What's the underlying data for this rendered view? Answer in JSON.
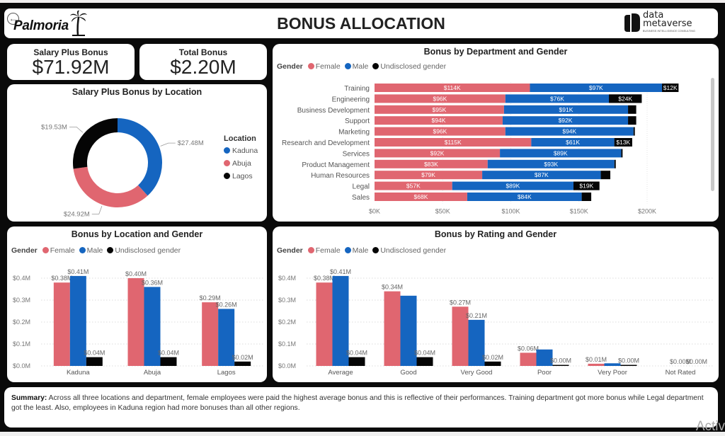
{
  "header": {
    "brand_left": "Palmoria",
    "title": "BONUS ALLOCATION",
    "brand_right_line1": "data",
    "brand_right_line2": "metaverse",
    "brand_right_tagline": "BUSINESS INTELLIGENCE CONSULTING",
    "back_icon": "back-arrow-icon"
  },
  "colors": {
    "female": "#e06670",
    "male": "#1565c0",
    "undisclosed": "#050505"
  },
  "kpis": [
    {
      "label": "Salary Plus Bonus",
      "value": "$71.92M"
    },
    {
      "label": "Total Bonus",
      "value": "$2.20M"
    }
  ],
  "legend": {
    "title": "Gender",
    "items": [
      "Female",
      "Male",
      "Undisclosed gender"
    ]
  },
  "summary": {
    "label": "Summary:",
    "text": " Across all three locations and department, female employees were paid the highest average bonus and this is reflective of their performances. Training department got more bonus while Legal department got the least. Also, employees in Kaduna region had more bonuses than all other regions."
  },
  "watermark": "Activ",
  "chart_data": [
    {
      "type": "pie",
      "title": "Salary Plus Bonus by Location",
      "legend_title": "Location",
      "legend_position": "right",
      "categories": [
        "Kaduna",
        "Abuja",
        "Lagos"
      ],
      "values": [
        27.48,
        24.92,
        19.53
      ],
      "labels": [
        "$27.48M",
        "$24.92M",
        "$19.53M"
      ],
      "colors": [
        "#1565c0",
        "#e06670",
        "#050505"
      ],
      "unit": "$M",
      "donut": true
    },
    {
      "type": "bar",
      "orientation": "horizontal",
      "stacked": true,
      "title": "Bonus by Department and Gender",
      "legend_position": "top-left",
      "categories": [
        "Training",
        "Engineering",
        "Business Development",
        "Support",
        "Marketing",
        "Research and Development",
        "Services",
        "Product Management",
        "Human Resources",
        "Legal",
        "Sales"
      ],
      "series": [
        {
          "name": "Female",
          "values": [
            114,
            96,
            95,
            94,
            96,
            115,
            92,
            83,
            79,
            57,
            68
          ],
          "labels": [
            "$114K",
            "$96K",
            "$95K",
            "$94K",
            "$96K",
            "$115K",
            "$92K",
            "$83K",
            "$79K",
            "$57K",
            "$68K"
          ]
        },
        {
          "name": "Male",
          "values": [
            97,
            76,
            91,
            92,
            94,
            61,
            89,
            93,
            87,
            89,
            84
          ],
          "labels": [
            "$97K",
            "$76K",
            "$91K",
            "$92K",
            "$94K",
            "$61K",
            "$89K",
            "$93K",
            "$87K",
            "$89K",
            "$84K"
          ]
        },
        {
          "name": "Undisclosed gender",
          "values": [
            12,
            24,
            6,
            6,
            1,
            13,
            1,
            1,
            7,
            19,
            7
          ],
          "labels": [
            "$12K",
            "$24K",
            "",
            "",
            "",
            "$13K",
            "",
            "",
            "",
            "$19K",
            ""
          ]
        }
      ],
      "xlim": [
        0,
        210
      ],
      "xticks": [
        "$0K",
        "$50K",
        "$100K",
        "$150K",
        "$200K"
      ],
      "xtick_values": [
        0,
        50,
        100,
        150,
        200
      ],
      "unit": "$K",
      "grid": true
    },
    {
      "type": "bar",
      "title": "Bonus by Location and Gender",
      "legend_position": "top-left",
      "categories": [
        "Kaduna",
        "Abuja",
        "Lagos"
      ],
      "series": [
        {
          "name": "Female",
          "values": [
            0.38,
            0.4,
            0.29
          ],
          "labels": [
            "$0.38M",
            "$0.40M",
            "$0.29M"
          ]
        },
        {
          "name": "Male",
          "values": [
            0.41,
            0.36,
            0.26
          ],
          "labels": [
            "$0.41M",
            "$0.36M",
            "$0.26M"
          ]
        },
        {
          "name": "Undisclosed gender",
          "values": [
            0.04,
            0.04,
            0.02
          ],
          "labels": [
            "$0.04M",
            "$0.04M",
            "$0.02M"
          ]
        }
      ],
      "ylim": [
        0,
        0.44
      ],
      "yticks": [
        "$0.0M",
        "$0.1M",
        "$0.2M",
        "$0.3M",
        "$0.4M"
      ],
      "ytick_values": [
        0,
        0.1,
        0.2,
        0.3,
        0.4
      ],
      "unit": "$M",
      "grid": true
    },
    {
      "type": "bar",
      "title": "Bonus by Rating and Gender",
      "legend_position": "top-left",
      "categories": [
        "Average",
        "Good",
        "Very Good",
        "Poor",
        "Very Poor",
        "Not Rated"
      ],
      "series": [
        {
          "name": "Female",
          "values": [
            0.38,
            0.34,
            0.27,
            0.06,
            0.01,
            0.0
          ],
          "labels": [
            "$0.38M",
            "$0.34M",
            "$0.27M",
            "$0.06M",
            "$0.01M",
            ""
          ]
        },
        {
          "name": "Male",
          "values": [
            0.41,
            0.32,
            0.21,
            0.075,
            0.012,
            0.0
          ],
          "labels": [
            "$0.41M",
            "",
            "$0.21M",
            "",
            "",
            "$0.00M"
          ]
        },
        {
          "name": "Undisclosed gender",
          "values": [
            0.04,
            0.04,
            0.02,
            0.003,
            0.002,
            0.0
          ],
          "labels": [
            "$0.04M",
            "$0.04M",
            "$0.02M",
            "$0.00M",
            "$0.00M",
            "$0.00M"
          ]
        }
      ],
      "ylim": [
        0,
        0.44
      ],
      "yticks": [
        "$0.0M",
        "$0.1M",
        "$0.2M",
        "$0.3M",
        "$0.4M"
      ],
      "ytick_values": [
        0,
        0.1,
        0.2,
        0.3,
        0.4
      ],
      "unit": "$M",
      "grid": true
    }
  ]
}
